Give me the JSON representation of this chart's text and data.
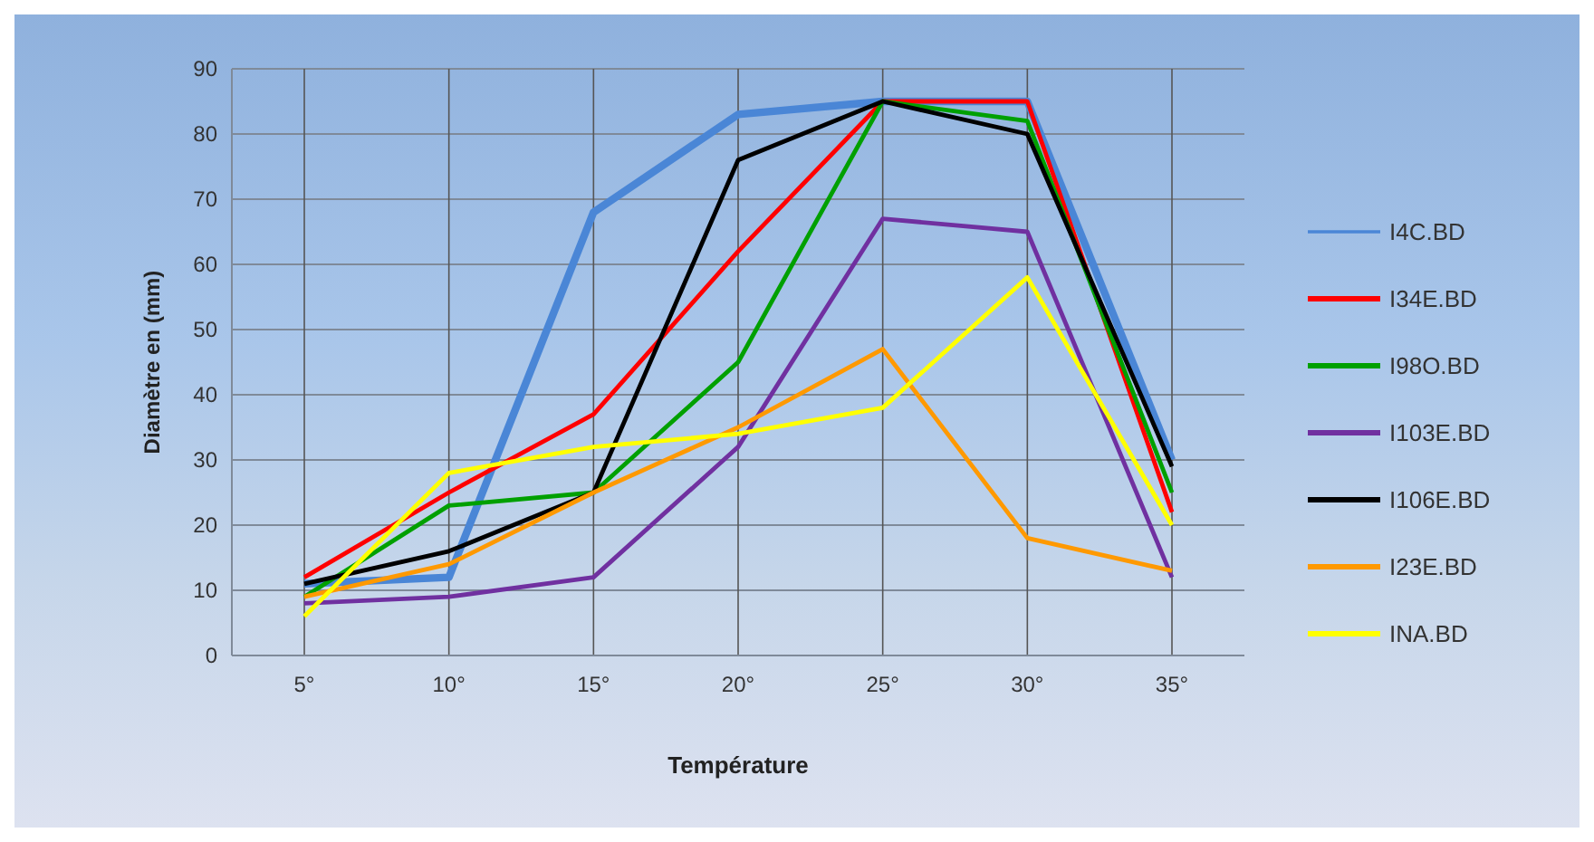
{
  "chart_data": {
    "type": "line",
    "xlabel": "Température",
    "ylabel": "Diamètre en (mm)",
    "categories": [
      "5°",
      "10°",
      "15°",
      "20°",
      "25°",
      "30°",
      "35°"
    ],
    "ylim": [
      0,
      90
    ],
    "yticks": [
      0,
      10,
      20,
      30,
      40,
      50,
      60,
      70,
      80,
      90
    ],
    "grid": true,
    "legend": "right",
    "marker": "none",
    "line_style": "solid",
    "series": [
      {
        "name": "I4C.BD",
        "color": "#4a86d6",
        "values": [
          11,
          12,
          68,
          83,
          85,
          85,
          30
        ]
      },
      {
        "name": "I34E.BD",
        "color": "#ff0000",
        "values": [
          12,
          25,
          37,
          62,
          85,
          85,
          22
        ]
      },
      {
        "name": "I98O.BD",
        "color": "#00a000",
        "values": [
          9,
          23,
          25,
          45,
          85,
          82,
          25
        ]
      },
      {
        "name": "I103E.BD",
        "color": "#7030a0",
        "values": [
          8,
          9,
          12,
          32,
          67,
          65,
          12
        ]
      },
      {
        "name": "I106E.BD",
        "color": "#000000",
        "values": [
          11,
          16,
          25,
          76,
          85,
          80,
          29
        ]
      },
      {
        "name": "I23E.BD",
        "color": "#ff9900",
        "values": [
          9,
          14,
          25,
          35,
          47,
          18,
          13
        ]
      },
      {
        "name": "INA.BD",
        "color": "#ffff00",
        "values": [
          6,
          28,
          32,
          34,
          38,
          58,
          20
        ]
      }
    ]
  }
}
